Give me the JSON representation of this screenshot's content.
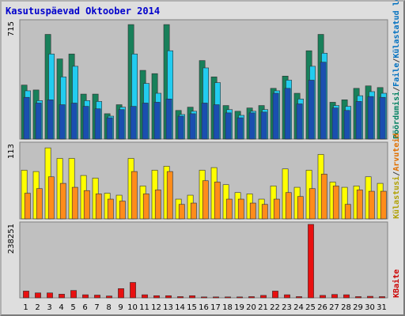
{
  "title": "Kasutuspäevad Oktoober 2014",
  "legend": {
    "panel1": [
      {
        "label": "Pöördumisi",
        "color": "#008060"
      },
      {
        "label": "/",
        "color": "#404040"
      },
      {
        "label": "Faile",
        "color": "#0070c0"
      },
      {
        "label": "/",
        "color": "#404040"
      },
      {
        "label": "Külastatud lehti",
        "color": "#0070c0"
      }
    ],
    "panel2": [
      {
        "label": "Külastusi",
        "color": "#b0a000"
      },
      {
        "label": "/",
        "color": "#404040"
      },
      {
        "label": "Arvuteid",
        "color": "#e07000"
      }
    ],
    "panel3": [
      {
        "label": "KBaite",
        "color": "#cc0000"
      }
    ]
  },
  "colors": {
    "hits": "#18805a",
    "files": "#22ccf0",
    "pages": "#1a4fb0",
    "visits": "#ffff00",
    "sites": "#ff8c1a",
    "kbytes": "#e81010",
    "weekend_label": "#1e8c50",
    "weekday_label": "#000000"
  },
  "chart_data": [
    {
      "type": "bar",
      "title": "Kasutuspäevad Oktoober 2014",
      "ymax_label": "715",
      "ylim": [
        0,
        715
      ],
      "categories": [
        "1",
        "2",
        "3",
        "4",
        "5",
        "6",
        "7",
        "8",
        "9",
        "10",
        "11",
        "12",
        "13",
        "14",
        "15",
        "16",
        "17",
        "18",
        "19",
        "20",
        "21",
        "22",
        "23",
        "24",
        "25",
        "26",
        "27",
        "28",
        "29",
        "30",
        "31"
      ],
      "weekend_days": [
        "4",
        "5",
        "11",
        "12",
        "18",
        "19",
        "25",
        "26"
      ],
      "series": [
        {
          "name": "Pöördumisi",
          "values": [
            330,
            300,
            640,
            490,
            520,
            275,
            275,
            155,
            210,
            700,
            420,
            400,
            700,
            175,
            195,
            480,
            380,
            205,
            170,
            190,
            205,
            310,
            385,
            280,
            540,
            640,
            225,
            240,
            310,
            325,
            315
          ]
        },
        {
          "name": "Faile",
          "values": [
            295,
            235,
            520,
            380,
            445,
            235,
            230,
            140,
            195,
            520,
            340,
            280,
            540,
            150,
            170,
            435,
            345,
            180,
            145,
            170,
            180,
            295,
            360,
            245,
            445,
            525,
            205,
            200,
            265,
            290,
            280
          ]
        },
        {
          "name": "Külastatud lehti",
          "values": [
            255,
            220,
            240,
            210,
            220,
            200,
            185,
            130,
            180,
            200,
            220,
            225,
            245,
            140,
            155,
            220,
            210,
            160,
            130,
            160,
            165,
            280,
            310,
            215,
            360,
            470,
            190,
            175,
            230,
            260,
            255
          ]
        }
      ]
    },
    {
      "type": "bar",
      "ymax_label": "113",
      "ylim": [
        0,
        113
      ],
      "categories": [
        "1",
        "2",
        "3",
        "4",
        "5",
        "6",
        "7",
        "8",
        "9",
        "10",
        "11",
        "12",
        "13",
        "14",
        "15",
        "16",
        "17",
        "18",
        "19",
        "20",
        "21",
        "22",
        "23",
        "24",
        "25",
        "26",
        "27",
        "28",
        "29",
        "30",
        "31"
      ],
      "series": [
        {
          "name": "Külastusi",
          "values": [
            74,
            72,
            108,
            92,
            92,
            66,
            62,
            39,
            36,
            92,
            50,
            74,
            80,
            30,
            36,
            74,
            78,
            52,
            40,
            38,
            30,
            50,
            76,
            48,
            74,
            98,
            56,
            48,
            50,
            64,
            54
          ]
        },
        {
          "name": "Arvuteid",
          "values": [
            39,
            46,
            64,
            54,
            48,
            43,
            38,
            30,
            27,
            72,
            38,
            44,
            72,
            22,
            24,
            58,
            56,
            30,
            30,
            24,
            22,
            30,
            40,
            34,
            46,
            68,
            50,
            22,
            44,
            42,
            42
          ]
        }
      ]
    },
    {
      "type": "bar",
      "ymax_label": "238251",
      "ylim": [
        0,
        238251
      ],
      "categories": [
        "1",
        "2",
        "3",
        "4",
        "5",
        "6",
        "7",
        "8",
        "9",
        "10",
        "11",
        "12",
        "13",
        "14",
        "15",
        "16",
        "17",
        "18",
        "19",
        "20",
        "21",
        "22",
        "23",
        "24",
        "25",
        "26",
        "27",
        "28",
        "29",
        "30",
        "31"
      ],
      "series": [
        {
          "name": "KBaite",
          "values": [
            22000,
            16000,
            16000,
            12000,
            24000,
            10000,
            9000,
            6000,
            30000,
            50000,
            10000,
            7000,
            7000,
            4000,
            7000,
            3000,
            3000,
            3000,
            3000,
            4000,
            8000,
            22000,
            10000,
            4000,
            238251,
            8000,
            11000,
            10000,
            4000,
            5000,
            4000
          ]
        }
      ]
    }
  ]
}
